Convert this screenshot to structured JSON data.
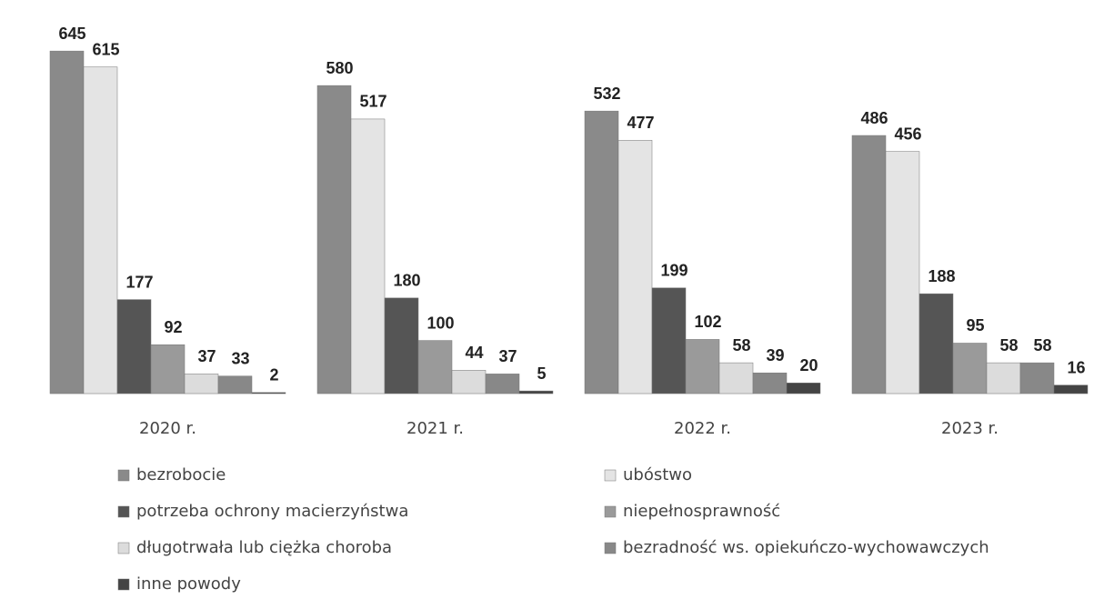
{
  "chart_data": {
    "type": "bar",
    "categories": [
      "2020 r.",
      "2021 r.",
      "2022 r.",
      "2023 r."
    ],
    "series": [
      {
        "name": "bezrobocie",
        "color": "#8a8a8a",
        "values": [
          645,
          580,
          532,
          486
        ]
      },
      {
        "name": "ubóstwo",
        "color": "#e4e4e4",
        "values": [
          615,
          517,
          477,
          456
        ]
      },
      {
        "name": "potrzeba ochrony macierzyństwa",
        "color": "#555555",
        "values": [
          177,
          180,
          199,
          188
        ]
      },
      {
        "name": "niepełnosprawność",
        "color": "#9a9a9a",
        "values": [
          92,
          100,
          102,
          95
        ]
      },
      {
        "name": "długotrwała lub ciężka choroba",
        "color": "#dcdcdc",
        "values": [
          37,
          44,
          58,
          58
        ]
      },
      {
        "name": "bezradność ws. opiekuńczo-wychowawczych",
        "color": "#888888",
        "values": [
          33,
          37,
          39,
          58
        ]
      },
      {
        "name": "inne powody",
        "color": "#444444",
        "values": [
          2,
          5,
          20,
          16
        ]
      }
    ],
    "ylim": [
      0,
      700
    ]
  }
}
